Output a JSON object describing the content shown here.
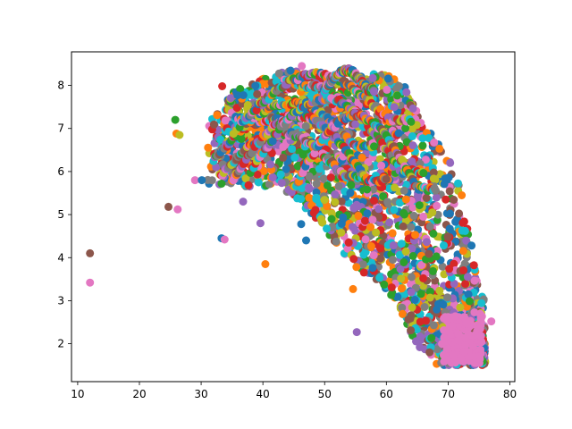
{
  "chart_data": {
    "type": "scatter",
    "title": "",
    "xlabel": "",
    "ylabel": "",
    "xlim": [
      9.0,
      80.8
    ],
    "ylim": [
      1.12,
      8.78
    ],
    "x_ticks": [
      10,
      20,
      30,
      40,
      50,
      60,
      70,
      80
    ],
    "y_ticks": [
      2,
      3,
      4,
      5,
      6,
      7,
      8
    ],
    "grid": false,
    "legend": "none",
    "palette": [
      "#1f77b4",
      "#ff7f0e",
      "#2ca02c",
      "#d62728",
      "#9467bd",
      "#8c564b",
      "#e377c2",
      "#7f7f7f",
      "#bcbd22",
      "#17becf"
    ],
    "outliers": [
      {
        "x": 12.0,
        "y": 4.1,
        "color": "#8c564b"
      },
      {
        "x": 12.0,
        "y": 3.42,
        "color": "#e377c2"
      },
      {
        "x": 24.7,
        "y": 5.18,
        "color": "#8c564b"
      },
      {
        "x": 25.8,
        "y": 7.2,
        "color": "#2ca02c"
      },
      {
        "x": 26.0,
        "y": 6.88,
        "color": "#ff7f0e"
      },
      {
        "x": 26.2,
        "y": 5.12,
        "color": "#e377c2"
      },
      {
        "x": 26.5,
        "y": 6.85,
        "color": "#bcbd22"
      },
      {
        "x": 29.0,
        "y": 5.8,
        "color": "#e377c2"
      },
      {
        "x": 30.1,
        "y": 5.8,
        "color": "#1f77b4"
      },
      {
        "x": 33.3,
        "y": 4.45,
        "color": "#1f77b4"
      },
      {
        "x": 33.8,
        "y": 4.42,
        "color": "#e377c2"
      },
      {
        "x": 36.8,
        "y": 5.3,
        "color": "#9467bd"
      },
      {
        "x": 39.6,
        "y": 4.8,
        "color": "#9467bd"
      },
      {
        "x": 40.4,
        "y": 3.85,
        "color": "#ff7f0e"
      },
      {
        "x": 46.2,
        "y": 4.78,
        "color": "#1f77b4"
      },
      {
        "x": 47.0,
        "y": 4.4,
        "color": "#1f77b4"
      },
      {
        "x": 54.6,
        "y": 3.27,
        "color": "#ff7f0e"
      },
      {
        "x": 55.2,
        "y": 2.27,
        "color": "#9467bd"
      },
      {
        "x": 77.0,
        "y": 2.52,
        "color": "#e377c2"
      },
      {
        "x": 73.8,
        "y": 4.28,
        "color": "#1f77b4"
      },
      {
        "x": 46.3,
        "y": 8.45,
        "color": "#e377c2"
      },
      {
        "x": 33.4,
        "y": 7.98,
        "color": "#d62728"
      }
    ],
    "envelope": {
      "upper": [
        [
          31,
          7.1
        ],
        [
          33,
          7.5
        ],
        [
          36,
          7.95
        ],
        [
          40,
          8.2
        ],
        [
          44,
          8.35
        ],
        [
          49,
          8.3
        ],
        [
          53,
          8.2
        ],
        [
          57,
          8.35
        ],
        [
          61,
          8.2
        ],
        [
          64,
          7.9
        ],
        [
          66,
          7.0
        ],
        [
          68,
          6.8
        ],
        [
          70,
          6.35
        ],
        [
          72,
          5.7
        ],
        [
          73,
          4.9
        ],
        [
          74,
          4.1
        ],
        [
          75,
          3.2
        ],
        [
          75,
          2.7
        ],
        [
          76,
          2.0
        ]
      ],
      "lower": [
        [
          34,
          5.7
        ],
        [
          38,
          5.6
        ],
        [
          42,
          5.7
        ],
        [
          46,
          5.3
        ],
        [
          49,
          4.8
        ],
        [
          52,
          4.3
        ],
        [
          55,
          3.7
        ],
        [
          58,
          3.5
        ],
        [
          62,
          2.9
        ],
        [
          64,
          2.2
        ],
        [
          66,
          1.8
        ],
        [
          70,
          1.55
        ],
        [
          73,
          1.5
        ],
        [
          75,
          1.5
        ]
      ]
    },
    "arcs": [
      {
        "x0": 32,
        "x1": 53,
        "ymin": 6.3,
        "ymax": 7.2
      },
      {
        "x0": 34,
        "x1": 58,
        "ymin": 6.6,
        "ymax": 7.6
      },
      {
        "x0": 35,
        "x1": 62,
        "ymin": 6.9,
        "ymax": 8.0
      },
      {
        "x0": 37,
        "x1": 64,
        "ymin": 7.2,
        "ymax": 8.25
      },
      {
        "x0": 33,
        "x1": 56,
        "ymin": 5.9,
        "ymax": 6.9
      },
      {
        "x0": 35,
        "x1": 60,
        "ymin": 5.8,
        "ymax": 7.3
      },
      {
        "x0": 38,
        "x1": 66,
        "ymin": 6.0,
        "ymax": 7.7
      },
      {
        "x0": 45,
        "x1": 68,
        "ymin": 5.6,
        "ymax": 7.3
      },
      {
        "x0": 50,
        "x1": 58,
        "ymin": 7.9,
        "ymax": 8.35
      }
    ],
    "n_generated_points": 2600
  }
}
